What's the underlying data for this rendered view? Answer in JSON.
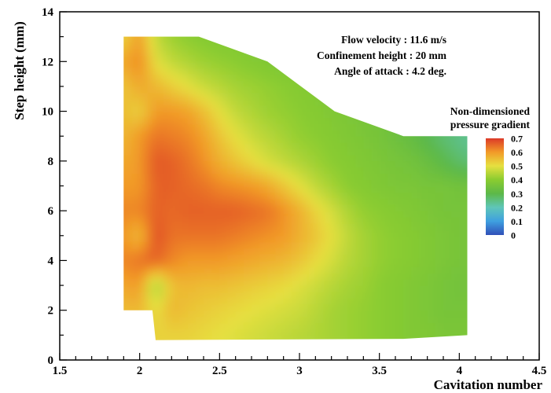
{
  "chart_data": {
    "type": "heatmap",
    "title": "",
    "xlabel": "Cavitation number",
    "ylabel": "Step height (mm)",
    "xlim": [
      1.5,
      4.5
    ],
    "ylim": [
      0,
      14
    ],
    "x_major_ticks": [
      1.5,
      2,
      2.5,
      3,
      3.5,
      4,
      4.5
    ],
    "x_tick_labels": [
      "1.5",
      "2",
      "2.5",
      "3",
      "3.5",
      "4",
      "4.5"
    ],
    "y_major_ticks": [
      0,
      2,
      4,
      6,
      8,
      10,
      12,
      14
    ],
    "y_tick_labels": [
      "0",
      "2",
      "4",
      "6",
      "8",
      "10",
      "12",
      "14"
    ],
    "grid": false,
    "annotations": [
      "Flow velocity : 11.6 m/s",
      "Confinement height : 20 mm",
      "Angle of attack : 4.2 deg."
    ],
    "colorbar": {
      "title": [
        "Non-dimensioned",
        "pressure gradient"
      ],
      "min": 0,
      "max": 0.7,
      "tick_labels": [
        "0.7",
        "0.6",
        "0.5",
        "0.4",
        "0.3",
        "0.2",
        "0.1",
        "0"
      ],
      "tick_values": [
        0.7,
        0.6,
        0.5,
        0.4,
        0.3,
        0.2,
        0.1,
        0
      ],
      "colors": [
        "#3050b8",
        "#3fa0e0",
        "#5fc6b8",
        "#5cb848",
        "#8acc30",
        "#e6e040",
        "#f29a28",
        "#dc3a28"
      ]
    },
    "domain_outline": [
      [
        1.9,
        13
      ],
      [
        2.37,
        13
      ],
      [
        2.8,
        12
      ],
      [
        3.22,
        10
      ],
      [
        3.65,
        9
      ],
      [
        4.05,
        9
      ],
      [
        4.05,
        1
      ],
      [
        3.65,
        0.85
      ],
      [
        2.1,
        0.8
      ],
      [
        2.08,
        2
      ],
      [
        1.9,
        2
      ]
    ],
    "field_grid": {
      "x": [
        1.9,
        2.0,
        2.1,
        2.2,
        2.3,
        2.4,
        2.5,
        2.6,
        2.7,
        2.8,
        2.9,
        3.0,
        3.1,
        3.2,
        3.3,
        3.4,
        3.5,
        3.6,
        3.7,
        3.8,
        3.9,
        4.0,
        4.05
      ],
      "y": [
        1,
        2,
        3,
        4,
        5,
        6,
        7,
        8,
        9,
        10,
        11,
        12,
        13
      ],
      "note": "values are estimated pressure gradient; row index = y, column index = x",
      "z": [
        [
          0.52,
          0.52,
          0.52,
          0.52,
          0.52,
          0.51,
          0.5,
          0.49,
          0.48,
          0.47,
          0.46,
          0.45,
          0.44,
          0.43,
          0.42,
          0.41,
          0.4,
          0.39,
          0.38,
          0.38,
          0.37,
          0.37,
          0.37
        ],
        [
          0.55,
          0.56,
          0.5,
          0.56,
          0.54,
          0.53,
          0.52,
          0.51,
          0.5,
          0.49,
          0.48,
          0.47,
          0.45,
          0.43,
          0.42,
          0.41,
          0.4,
          0.39,
          0.38,
          0.37,
          0.36,
          0.36,
          0.36
        ],
        [
          0.58,
          0.6,
          0.42,
          0.55,
          0.56,
          0.55,
          0.55,
          0.54,
          0.53,
          0.52,
          0.51,
          0.49,
          0.47,
          0.45,
          0.43,
          0.42,
          0.4,
          0.39,
          0.38,
          0.37,
          0.36,
          0.35,
          0.35
        ],
        [
          0.62,
          0.64,
          0.66,
          0.62,
          0.6,
          0.6,
          0.6,
          0.59,
          0.58,
          0.57,
          0.56,
          0.54,
          0.51,
          0.48,
          0.45,
          0.43,
          0.41,
          0.4,
          0.39,
          0.38,
          0.37,
          0.36,
          0.36
        ],
        [
          0.6,
          0.55,
          0.68,
          0.64,
          0.64,
          0.64,
          0.64,
          0.63,
          0.62,
          0.61,
          0.6,
          0.57,
          0.54,
          0.5,
          0.46,
          0.43,
          0.41,
          0.4,
          0.39,
          0.38,
          0.37,
          0.36,
          0.36
        ],
        [
          0.62,
          0.62,
          0.66,
          0.65,
          0.66,
          0.66,
          0.66,
          0.66,
          0.65,
          0.64,
          0.61,
          0.57,
          0.52,
          0.48,
          0.44,
          0.41,
          0.4,
          0.39,
          0.38,
          0.37,
          0.36,
          0.36,
          0.36
        ],
        [
          0.6,
          0.6,
          0.66,
          0.66,
          0.65,
          0.64,
          0.62,
          0.61,
          0.6,
          0.58,
          0.54,
          0.5,
          0.46,
          0.43,
          0.4,
          0.39,
          0.38,
          0.37,
          0.37,
          0.36,
          0.36,
          0.35,
          0.35
        ],
        [
          0.58,
          0.6,
          0.67,
          0.66,
          0.64,
          0.61,
          0.57,
          0.54,
          0.51,
          0.48,
          0.46,
          0.44,
          0.42,
          0.4,
          0.39,
          0.38,
          0.37,
          0.36,
          0.35,
          0.33,
          0.3,
          0.27,
          0.26
        ],
        [
          0.56,
          0.6,
          0.64,
          0.63,
          0.62,
          0.59,
          0.54,
          0.5,
          0.47,
          0.45,
          0.43,
          0.41,
          0.4,
          0.39,
          0.38,
          0.37,
          0.36,
          0.34,
          0.32,
          0.29,
          0.26,
          0.24,
          0.23
        ],
        [
          0.55,
          0.52,
          0.6,
          0.6,
          0.59,
          0.55,
          0.5,
          0.46,
          0.44,
          0.42,
          0.41,
          0.4,
          0.39,
          0.38,
          0.37,
          0.36,
          0.35,
          0.34,
          0.33,
          0.32,
          0.31,
          0.3,
          0.3
        ],
        [
          0.54,
          0.58,
          0.56,
          0.53,
          0.5,
          0.47,
          0.45,
          0.43,
          0.42,
          0.41,
          0.4,
          0.39,
          0.38,
          0.37,
          0.36,
          0.35,
          0.35,
          0.34,
          0.34,
          0.33,
          0.33,
          0.33,
          0.33
        ],
        [
          0.58,
          0.62,
          0.5,
          0.46,
          0.44,
          0.42,
          0.41,
          0.4,
          0.39,
          0.38,
          0.37,
          0.37,
          0.36,
          0.36,
          0.35,
          0.35,
          0.35,
          0.34,
          0.34,
          0.34,
          0.34,
          0.34,
          0.34
        ],
        [
          0.52,
          0.6,
          0.46,
          0.42,
          0.4,
          0.39,
          0.38,
          0.38,
          0.37,
          0.37,
          0.36,
          0.36,
          0.36,
          0.35,
          0.35,
          0.35,
          0.35,
          0.35,
          0.35,
          0.35,
          0.35,
          0.35,
          0.35
        ]
      ]
    }
  }
}
